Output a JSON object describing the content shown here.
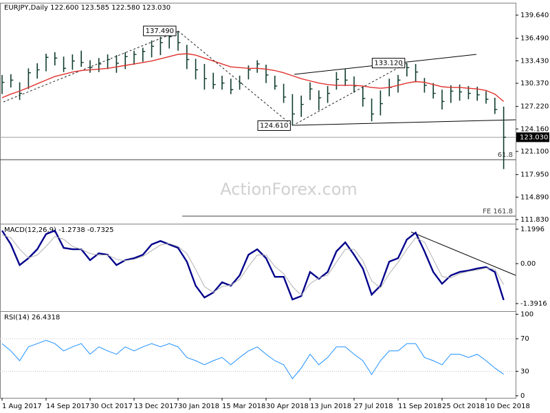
{
  "chart_data": [
    {
      "type": "ohlc",
      "title": "EURJPY,Daily",
      "header_values": [
        122.6,
        123.585,
        122.58,
        123.03
      ],
      "header_value_labels": [
        "122.600",
        "123.585",
        "122.580",
        "123.030"
      ],
      "watermark": "ActionForex.com",
      "color": "#0d3b2c",
      "ma_color": "#e0302c",
      "high": [
        131.5,
        131.6,
        130.5,
        132.4,
        133.1,
        134.4,
        134.6,
        134.0,
        134.3,
        134.8,
        133.5,
        133.8,
        134.3,
        134.2,
        134.6,
        134.8,
        135.2,
        136.2,
        136.7,
        137.2,
        137.49,
        135.6,
        133.7,
        133.0,
        131.8,
        131.4,
        131.0,
        131.4,
        132.8,
        133.5,
        132.9,
        131.4,
        130.3,
        128.9,
        128.7,
        130.5,
        129.4,
        130.0,
        131.9,
        132.3,
        131.3,
        130.0,
        128.3,
        129.4,
        131.0,
        131.5,
        133.12,
        133.0,
        131.1,
        130.4,
        129.5,
        130.1,
        130.2,
        130.0,
        129.9,
        129.3,
        128.4,
        127.2
      ],
      "low": [
        128.9,
        129.8,
        128.1,
        129.6,
        131.0,
        132.0,
        132.8,
        131.9,
        132.2,
        132.6,
        131.8,
        131.9,
        132.3,
        131.8,
        132.3,
        132.9,
        133.3,
        133.9,
        134.2,
        135.1,
        134.8,
        132.3,
        130.9,
        129.5,
        129.6,
        129.5,
        128.9,
        129.5,
        130.9,
        131.8,
        130.4,
        129.5,
        127.7,
        124.61,
        125.8,
        128.1,
        126.7,
        127.7,
        129.5,
        130.0,
        129.1,
        127.2,
        125.2,
        126.0,
        128.6,
        129.1,
        131.3,
        130.5,
        129.1,
        128.3,
        126.8,
        127.7,
        128.0,
        128.2,
        128.0,
        127.6,
        126.2,
        118.7
      ],
      "close": [
        130.5,
        130.8,
        129.0,
        131.8,
        132.2,
        133.9,
        133.8,
        132.4,
        133.4,
        133.2,
        132.5,
        133.0,
        133.6,
        133.1,
        134.0,
        134.3,
        134.7,
        135.4,
        135.9,
        136.7,
        135.9,
        133.6,
        132.2,
        131.0,
        130.2,
        130.4,
        129.5,
        130.4,
        132.2,
        133.0,
        131.5,
        130.0,
        128.5,
        126.2,
        127.5,
        129.6,
        128.4,
        129.0,
        130.9,
        130.8,
        130.0,
        128.3,
        126.2,
        127.6,
        129.8,
        130.8,
        132.5,
        131.9,
        130.1,
        129.0,
        127.9,
        129.3,
        129.2,
        129.0,
        128.8,
        128.2,
        126.8,
        123.03
      ],
      "ma": [
        128.4,
        128.9,
        129.3,
        129.8,
        130.3,
        130.8,
        131.3,
        131.6,
        131.9,
        132.1,
        132.2,
        132.3,
        132.4,
        132.6,
        132.8,
        133.0,
        133.2,
        133.4,
        133.7,
        134.0,
        134.3,
        134.4,
        134.2,
        133.8,
        133.4,
        133.0,
        132.6,
        132.5,
        132.4,
        132.4,
        132.3,
        132.1,
        131.8,
        131.4,
        131.0,
        130.7,
        130.4,
        130.2,
        130.1,
        130.1,
        130.1,
        130.0,
        129.8,
        129.7,
        129.8,
        130.1,
        130.4,
        130.6,
        130.5,
        130.2,
        129.9,
        129.8,
        129.8,
        129.7,
        129.6,
        129.4,
        128.9,
        127.9
      ],
      "annotations": [
        {
          "text": "137.490",
          "value": 137.49
        },
        {
          "text": "124.610",
          "value": 124.61
        },
        {
          "text": "133.120",
          "value": 133.12
        }
      ],
      "levels": [
        {
          "label": "61.8",
          "value": 119.98
        },
        {
          "label": "FE 161.8",
          "value": 112.3
        }
      ],
      "ylim": [
        111.27,
        141.23
      ],
      "yticks": [
        {
          "value": 139.64,
          "label": "139.640"
        },
        {
          "value": 136.49,
          "label": "136.490"
        },
        {
          "value": 133.43,
          "label": "133.430"
        },
        {
          "value": 130.37,
          "label": "130.370"
        },
        {
          "value": 127.22,
          "label": "127.220"
        },
        {
          "value": 124.16,
          "label": "124.160"
        },
        {
          "value": 121.1,
          "label": "121.100"
        },
        {
          "value": 117.95,
          "label": "117.950"
        },
        {
          "value": 114.89,
          "label": "114.890"
        },
        {
          "value": 111.83,
          "label": "111.830"
        }
      ]
    },
    {
      "type": "line",
      "title": "MACD(12,26,9)",
      "header_values": [
        -1.2738,
        -0.7325
      ],
      "series": [
        {
          "color": "#00008b",
          "width": 2.4,
          "values": [
            1.15,
            0.67,
            -0.05,
            0.19,
            0.5,
            1.03,
            1.15,
            0.55,
            0.5,
            0.5,
            0.12,
            0.36,
            0.31,
            -0.05,
            0.12,
            0.19,
            0.31,
            0.67,
            0.79,
            0.67,
            0.55,
            0.07,
            -0.77,
            -1.18,
            -1.01,
            -0.65,
            -0.77,
            -0.41,
            0.31,
            0.5,
            0.19,
            -0.46,
            -0.46,
            -1.25,
            -1.13,
            -0.29,
            -0.53,
            -0.29,
            0.43,
            0.74,
            0.31,
            -0.17,
            -1.08,
            -0.77,
            0.07,
            0.19,
            0.84,
            1.08,
            0.43,
            -0.29,
            -0.7,
            -0.41,
            -0.29,
            -0.24,
            -0.17,
            -0.12,
            -0.29,
            -1.27
          ]
        },
        {
          "color": "#b0b0b0",
          "width": 1,
          "values": [
            1.0,
            0.9,
            0.5,
            0.2,
            0.3,
            0.6,
            0.95,
            0.85,
            0.6,
            0.5,
            0.35,
            0.3,
            0.3,
            0.15,
            0.1,
            0.15,
            0.25,
            0.45,
            0.65,
            0.7,
            0.6,
            0.35,
            -0.2,
            -0.8,
            -1.0,
            -0.8,
            -0.75,
            -0.55,
            -0.1,
            0.3,
            0.3,
            -0.1,
            -0.35,
            -0.8,
            -1.1,
            -0.7,
            -0.5,
            -0.4,
            0.05,
            0.5,
            0.5,
            0.1,
            -0.6,
            -0.85,
            -0.35,
            0.05,
            0.5,
            0.9,
            0.75,
            0.15,
            -0.45,
            -0.5,
            -0.35,
            -0.27,
            -0.22,
            -0.15,
            -0.2,
            -0.73
          ]
        }
      ],
      "ylim": [
        -1.655,
        1.367
      ],
      "yticks": [
        1.1996,
        {
          "value": 0,
          "label": "0.00"
        },
        -1.3916
      ]
    },
    {
      "type": "line",
      "title": "RSI(14)",
      "header_values": [
        26.4318
      ],
      "series": [
        {
          "color": "#1e90ff",
          "width": 1,
          "values": [
            64,
            55,
            43,
            60,
            64,
            68,
            64,
            55,
            60,
            64,
            51,
            60,
            55,
            51,
            60,
            55,
            60,
            64,
            60,
            64,
            60,
            47,
            43,
            38,
            43,
            47,
            38,
            47,
            55,
            60,
            51,
            43,
            38,
            21,
            34,
            51,
            38,
            47,
            60,
            60,
            51,
            43,
            26,
            43,
            55,
            55,
            64,
            64,
            47,
            43,
            38,
            51,
            51,
            47,
            51,
            43,
            34,
            26.4
          ]
        }
      ],
      "levels": [
        70,
        30
      ],
      "ylim": [
        -2.6,
        103
      ],
      "yticks": [
        100,
        70,
        30,
        0
      ],
      "categories": [
        "1 Aug 2017",
        null,
        null,
        null,
        null,
        "14 Sep 2017",
        null,
        null,
        null,
        null,
        "30 Oct 2017",
        null,
        null,
        null,
        null,
        "13 Dec 2017",
        null,
        null,
        null,
        null,
        "30 Jan 2018",
        null,
        null,
        null,
        null,
        "15 Mar 2018",
        null,
        null,
        null,
        null,
        "30 Apr 2018",
        null,
        null,
        null,
        null,
        "13 Jun 2018",
        null,
        null,
        null,
        null,
        "27 Jul 2018",
        null,
        null,
        null,
        null,
        "11 Sep 2018",
        null,
        null,
        null,
        null,
        "25 Oct 2018",
        null,
        null,
        null,
        null,
        "10 Dec 2018",
        null,
        null
      ]
    }
  ]
}
